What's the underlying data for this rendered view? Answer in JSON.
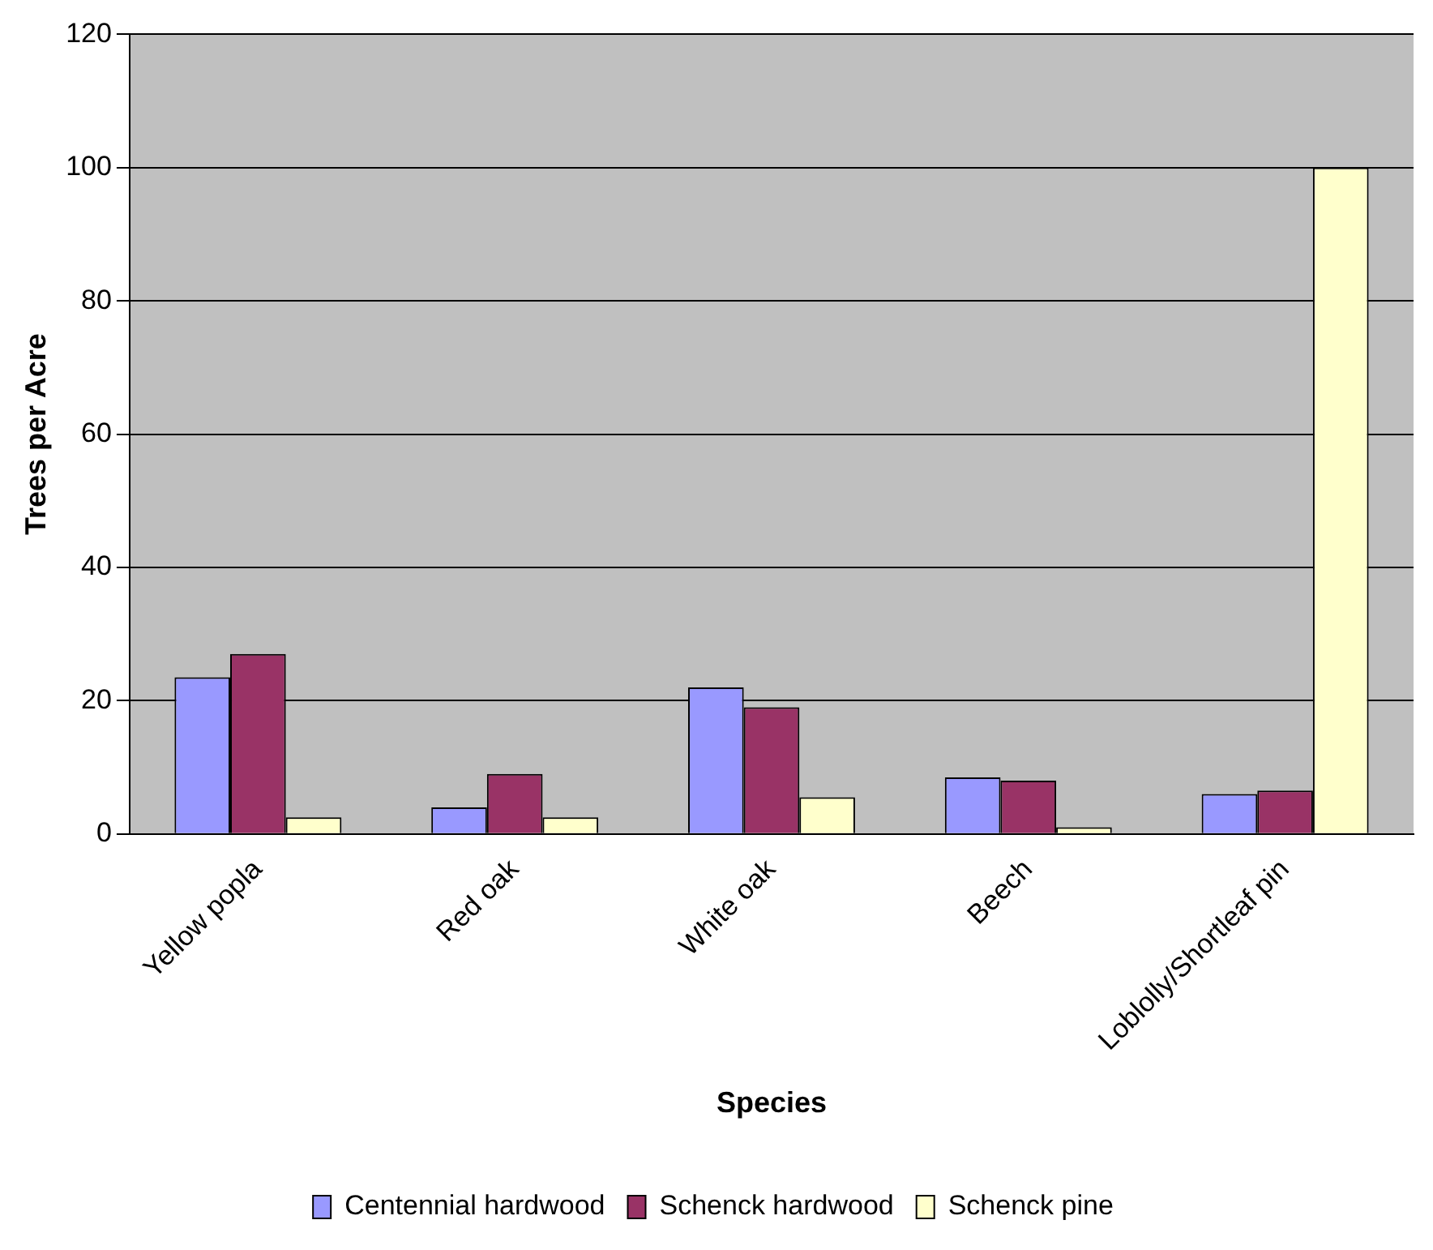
{
  "chart_data": {
    "type": "bar",
    "xlabel": "Species",
    "ylabel": "Trees per Acre",
    "categories": [
      "Yellow popla",
      "Red oak",
      "White oak",
      "Beech",
      "Loblolly/Shortleaf pin"
    ],
    "series": [
      {
        "name": "Centennial hardwood",
        "color": "#9999ff",
        "values": [
          23.5,
          4,
          22,
          8.5,
          6
        ]
      },
      {
        "name": "Schenck hardwood",
        "color": "#993366",
        "values": [
          27,
          9,
          19,
          8,
          6.5
        ]
      },
      {
        "name": "Schenck pine",
        "color": "#ffffcc",
        "values": [
          2.5,
          2.5,
          5.5,
          1,
          100
        ]
      }
    ],
    "ylim": [
      0,
      120
    ],
    "yticks": [
      0,
      20,
      40,
      60,
      80,
      100,
      120
    ],
    "grid": "y",
    "legend": "bottom"
  }
}
